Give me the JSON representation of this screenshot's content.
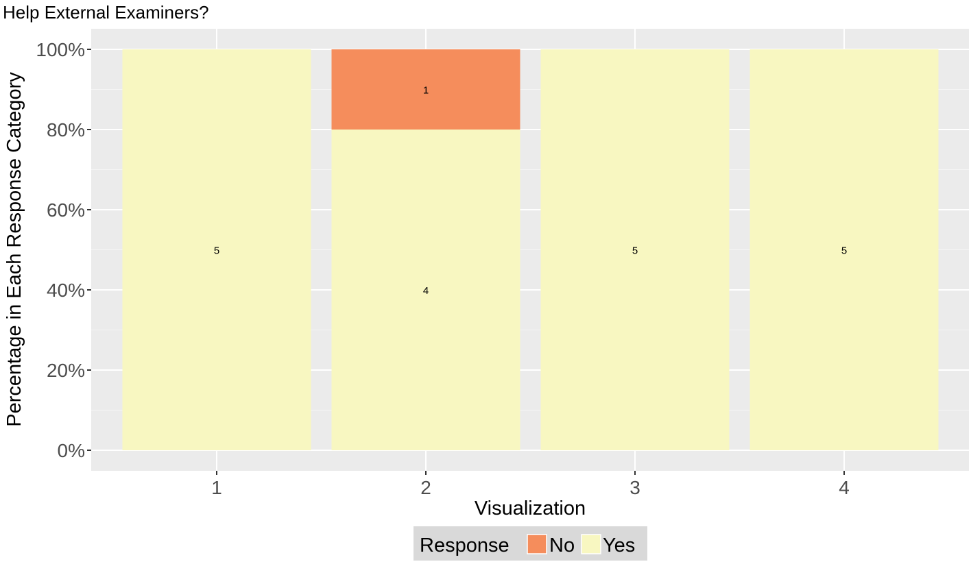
{
  "chart_data": {
    "type": "bar",
    "stacked": true,
    "title": "Help External Examiners?",
    "xlabel": "Visualization",
    "ylabel": "Percentage in Each Response Category",
    "categories": [
      "1",
      "2",
      "3",
      "4"
    ],
    "ylim": [
      0,
      100
    ],
    "yticks": [
      "0%",
      "20%",
      "40%",
      "60%",
      "80%",
      "100%"
    ],
    "ytick_values": [
      0,
      20,
      40,
      60,
      80,
      100
    ],
    "grid": true,
    "series": [
      {
        "name": "Yes",
        "color": "#F8F7C1",
        "percent": [
          100,
          80,
          100,
          100
        ],
        "counts": [
          "5",
          "4",
          "5",
          "5"
        ]
      },
      {
        "name": "No",
        "color": "#F58D5C",
        "percent": [
          0,
          20,
          0,
          0
        ],
        "counts": [
          "",
          "1",
          "",
          ""
        ]
      }
    ],
    "legend": {
      "title": "Response",
      "entries": [
        "No",
        "Yes"
      ],
      "placement": "bottom"
    }
  }
}
